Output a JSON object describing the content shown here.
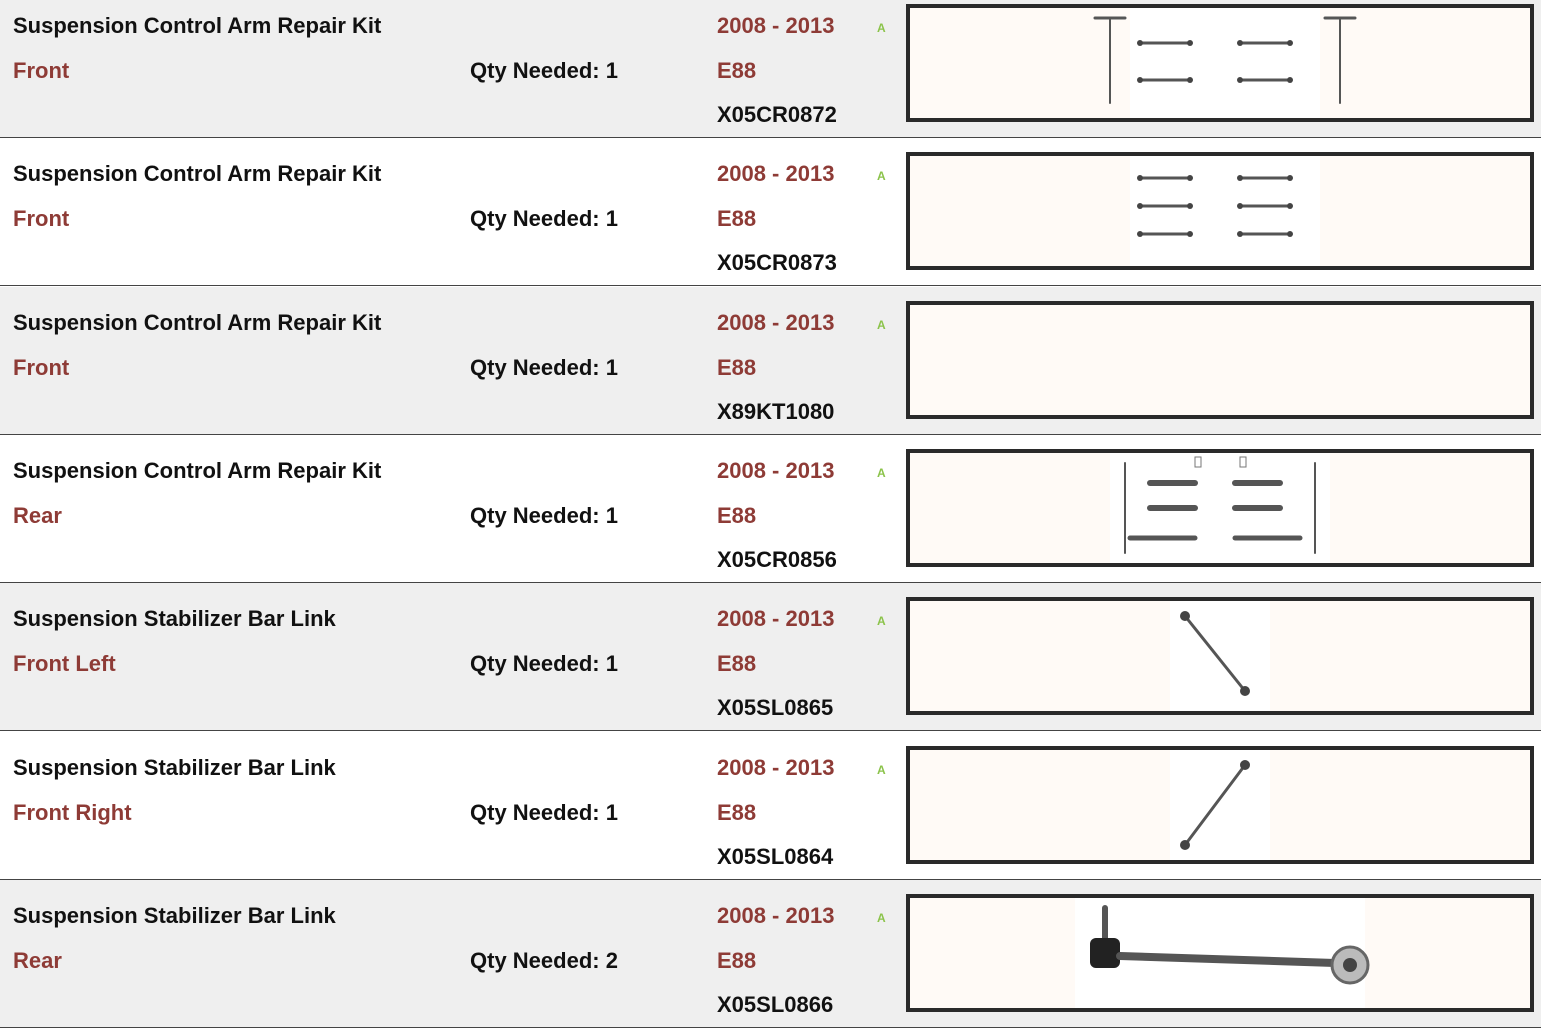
{
  "rows": [
    {
      "title": "Suspension Control Arm Repair Kit",
      "position": "Front",
      "qty": "Qty Needed: 1",
      "years": "2008 - 2013",
      "grade": "A",
      "model": "E88",
      "part": "X05CR0872"
    },
    {
      "title": "Suspension Control Arm Repair Kit",
      "position": "Front",
      "qty": "Qty Needed: 1",
      "years": "2008 - 2013",
      "grade": "A",
      "model": "E88",
      "part": "X05CR0873"
    },
    {
      "title": "Suspension Control Arm Repair Kit",
      "position": "Front",
      "qty": "Qty Needed: 1",
      "years": "2008 - 2013",
      "grade": "A",
      "model": "E88",
      "part": "X89KT1080"
    },
    {
      "title": "Suspension Control Arm Repair Kit",
      "position": "Rear",
      "qty": "Qty Needed: 1",
      "years": "2008 - 2013",
      "grade": "A",
      "model": "E88",
      "part": "X05CR0856"
    },
    {
      "title": "Suspension Stabilizer Bar Link",
      "position": "Front Left",
      "qty": "Qty Needed: 1",
      "years": "2008 - 2013",
      "grade": "A",
      "model": "E88",
      "part": "X05SL0865"
    },
    {
      "title": "Suspension Stabilizer Bar Link",
      "position": "Front Right",
      "qty": "Qty Needed: 1",
      "years": "2008 - 2013",
      "grade": "A",
      "model": "E88",
      "part": "X05SL0864"
    },
    {
      "title": "Suspension Stabilizer Bar Link",
      "position": "Rear",
      "qty": "Qty Needed: 2",
      "years": "2008 - 2013",
      "grade": "A",
      "model": "E88",
      "part": "X05SL0866"
    }
  ]
}
